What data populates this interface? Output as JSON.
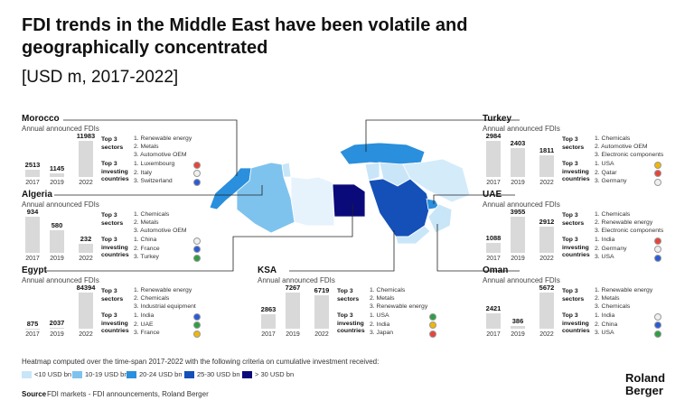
{
  "title": "FDI trends in the Middle East have been volatile and geographically concentrated",
  "subtitle": "[USD m, 2017-2022]",
  "panels": [
    {
      "name": "Morocco",
      "caption": "Annual announced FDIs",
      "years": [
        "2017",
        "2019",
        "2022"
      ],
      "values": [
        2513,
        1145,
        11983
      ],
      "sectors_label": "Top 3 sectors",
      "sectors": [
        "1. Renewable energy",
        "2. Metals",
        "3. Automotive OEM"
      ],
      "countries_label": "Top 3 investing countries",
      "countries": [
        "1. Luxembourg",
        "2. Italy",
        "3. Switzerland"
      ]
    },
    {
      "name": "Algeria",
      "caption": "Annual announced FDIs",
      "years": [
        "2017",
        "2019",
        "2022"
      ],
      "values": [
        934,
        580,
        232
      ],
      "sectors_label": "Top 3 sectors",
      "sectors": [
        "1. Chemicals",
        "2. Metals",
        "3. Automotive OEM"
      ],
      "countries_label": "Top 3 investing countries",
      "countries": [
        "1. China",
        "2. France",
        "3. Turkey"
      ]
    },
    {
      "name": "Egypt",
      "caption": "Annual announced FDIs",
      "years": [
        "2017",
        "2019",
        "2022"
      ],
      "values": [
        875,
        2037,
        84394
      ],
      "sectors_label": "Top 3 sectors",
      "sectors": [
        "1. Renewable energy",
        "2. Chemicals",
        "3. Industrial equipment"
      ],
      "countries_label": "Top 3 investing countries",
      "countries": [
        "1. India",
        "2. UAE",
        "3. France"
      ]
    },
    {
      "name": "KSA",
      "caption": "Annual announced FDIs",
      "years": [
        "2017",
        "2019",
        "2022"
      ],
      "values": [
        2863,
        7267,
        6719
      ],
      "sectors_label": "Top 3 sectors",
      "sectors": [
        "1. Chemicals",
        "2. Metals",
        "3. Renewable energy"
      ],
      "countries_label": "Top 3 investing countries",
      "countries": [
        "1. USA",
        "2. India",
        "3. Japan"
      ]
    },
    {
      "name": "Turkey",
      "caption": "Annual announced FDIs",
      "years": [
        "2017",
        "2019",
        "2022"
      ],
      "values": [
        2984,
        2403,
        1811
      ],
      "sectors_label": "Top 3 sectors",
      "sectors": [
        "1. Chemicals",
        "2. Automotive OEM",
        "3. Electronic components"
      ],
      "countries_label": "Top 3 investing countries",
      "countries": [
        "1. USA",
        "2. Qatar",
        "3. Germany"
      ]
    },
    {
      "name": "UAE",
      "caption": "Annual announced FDIs",
      "years": [
        "2017",
        "2019",
        "2022"
      ],
      "values": [
        1088,
        3955,
        2912
      ],
      "sectors_label": "Top 3 sectors",
      "sectors": [
        "1. Chemicals",
        "2. Renewable energy",
        "3. Electronic components"
      ],
      "countries_label": "Top 3 investing countries",
      "countries": [
        "1. India",
        "2. Germany",
        "3. USA"
      ]
    },
    {
      "name": "Oman",
      "caption": "Annual announced FDIs",
      "years": [
        "2017",
        "2019",
        "2022"
      ],
      "values": [
        2421,
        386,
        5672
      ],
      "sectors_label": "Top 3 sectors",
      "sectors": [
        "1. Renewable energy",
        "2. Metals",
        "3. Chemicals"
      ],
      "countries_label": "Top 3 investing countries",
      "countries": [
        "1. India",
        "2. China",
        "3. USA"
      ]
    }
  ],
  "legend": {
    "text": "Heatmap computed over the time-span 2017-2022 with the following criteria on cumulative investment received:",
    "items": [
      {
        "label": "<10 USD bn",
        "color": "#c9e6f8"
      },
      {
        "label": "10-19 USD bn",
        "color": "#7ec3ee"
      },
      {
        "label": "20-24 USD bn",
        "color": "#2a8fdc"
      },
      {
        "label": "25-30 USD bn",
        "color": "#1450b8"
      },
      {
        "label": "> 30 USD bn",
        "color": "#0a0a7a"
      }
    ]
  },
  "source_label": "Source",
  "source": "FDI markets - FDI announcements, Roland Berger",
  "logo": "Roland Berger"
}
